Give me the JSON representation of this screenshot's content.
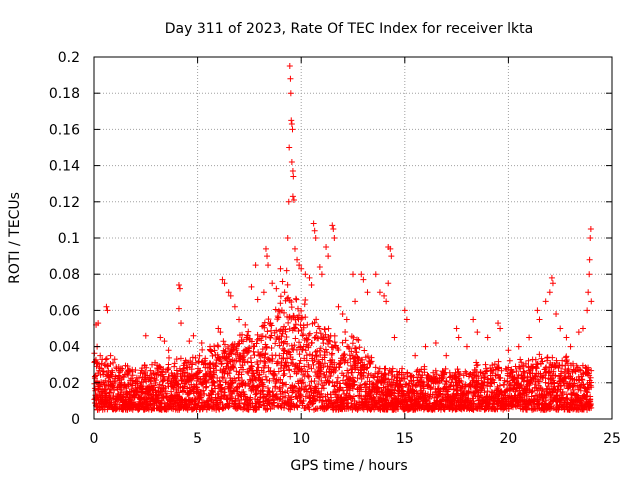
{
  "chart_data": {
    "type": "scatter",
    "title": "Day 311 of 2023, Rate Of TEC Index for receiver lkta",
    "xlabel": "GPS time / hours",
    "ylabel": "ROTI / TECUs",
    "xlim": [
      0,
      25
    ],
    "ylim": [
      0,
      0.2
    ],
    "x_ticks": [
      0,
      5,
      10,
      15,
      20,
      25
    ],
    "y_ticks": [
      0,
      0.02,
      0.04,
      0.06,
      0.08,
      0.1,
      0.12,
      0.14,
      0.16,
      0.18,
      0.2
    ],
    "x_tick_labels": [
      "0",
      "5",
      "10",
      "15",
      "20",
      "25"
    ],
    "y_tick_labels": [
      "0",
      "0.02",
      "0.04",
      "0.06",
      "0.08",
      "0.1",
      "0.12",
      "0.14",
      "0.16",
      "0.18",
      "0.2"
    ],
    "grid": true,
    "marker": "+",
    "color": "#ff0000",
    "series": [
      {
        "values_xy": [
          [
            0.1,
            0.052
          ],
          [
            0.15,
            0.04
          ],
          [
            0.2,
            0.053
          ],
          [
            0.3,
            0.035
          ],
          [
            0.5,
            0.03
          ],
          [
            0.6,
            0.062
          ],
          [
            0.65,
            0.06
          ],
          [
            0.8,
            0.035
          ],
          [
            1.0,
            0.033
          ],
          [
            1.3,
            0.028
          ],
          [
            1.6,
            0.025
          ],
          [
            2.0,
            0.027
          ],
          [
            2.5,
            0.046
          ],
          [
            2.8,
            0.03
          ],
          [
            3.2,
            0.045
          ],
          [
            3.4,
            0.043
          ],
          [
            3.6,
            0.038
          ],
          [
            4.1,
            0.074
          ],
          [
            4.15,
            0.072
          ],
          [
            4.1,
            0.061
          ],
          [
            4.2,
            0.053
          ],
          [
            4.6,
            0.043
          ],
          [
            4.8,
            0.046
          ],
          [
            5.2,
            0.042
          ],
          [
            5.6,
            0.04
          ],
          [
            6.0,
            0.05
          ],
          [
            6.1,
            0.048
          ],
          [
            6.2,
            0.077
          ],
          [
            6.3,
            0.075
          ],
          [
            6.5,
            0.07
          ],
          [
            6.6,
            0.068
          ],
          [
            6.8,
            0.062
          ],
          [
            7.0,
            0.055
          ],
          [
            7.3,
            0.052
          ],
          [
            7.6,
            0.073
          ],
          [
            7.8,
            0.085
          ],
          [
            7.9,
            0.066
          ],
          [
            8.2,
            0.07
          ],
          [
            8.3,
            0.094
          ],
          [
            8.35,
            0.09
          ],
          [
            8.4,
            0.085
          ],
          [
            8.6,
            0.075
          ],
          [
            8.8,
            0.072
          ],
          [
            9.0,
            0.083
          ],
          [
            9.1,
            0.076
          ],
          [
            9.2,
            0.07
          ],
          [
            9.3,
            0.082
          ],
          [
            9.35,
            0.1
          ],
          [
            9.4,
            0.12
          ],
          [
            9.42,
            0.15
          ],
          [
            9.45,
            0.195
          ],
          [
            9.48,
            0.188
          ],
          [
            9.5,
            0.18
          ],
          [
            9.52,
            0.165
          ],
          [
            9.55,
            0.163
          ],
          [
            9.58,
            0.16
          ],
          [
            9.6,
            0.137
          ],
          [
            9.62,
            0.134
          ],
          [
            9.55,
            0.142
          ],
          [
            9.6,
            0.123
          ],
          [
            9.65,
            0.121
          ],
          [
            9.7,
            0.094
          ],
          [
            9.8,
            0.088
          ],
          [
            9.9,
            0.085
          ],
          [
            10.0,
            0.083
          ],
          [
            10.2,
            0.08
          ],
          [
            10.4,
            0.078
          ],
          [
            10.5,
            0.074
          ],
          [
            10.6,
            0.108
          ],
          [
            10.65,
            0.104
          ],
          [
            10.7,
            0.1
          ],
          [
            10.9,
            0.084
          ],
          [
            11.0,
            0.08
          ],
          [
            11.2,
            0.095
          ],
          [
            11.3,
            0.09
          ],
          [
            11.5,
            0.107
          ],
          [
            11.55,
            0.105
          ],
          [
            11.6,
            0.1
          ],
          [
            11.8,
            0.062
          ],
          [
            12.0,
            0.058
          ],
          [
            12.2,
            0.055
          ],
          [
            12.5,
            0.08
          ],
          [
            12.6,
            0.065
          ],
          [
            12.9,
            0.08
          ],
          [
            13.0,
            0.077
          ],
          [
            13.2,
            0.07
          ],
          [
            13.6,
            0.08
          ],
          [
            13.8,
            0.07
          ],
          [
            14.0,
            0.068
          ],
          [
            14.2,
            0.095
          ],
          [
            14.3,
            0.094
          ],
          [
            14.35,
            0.09
          ],
          [
            14.2,
            0.075
          ],
          [
            14.1,
            0.065
          ],
          [
            14.5,
            0.045
          ],
          [
            15.0,
            0.06
          ],
          [
            15.1,
            0.055
          ],
          [
            15.5,
            0.035
          ],
          [
            16.0,
            0.04
          ],
          [
            16.5,
            0.042
          ],
          [
            17.0,
            0.035
          ],
          [
            17.5,
            0.05
          ],
          [
            17.6,
            0.045
          ],
          [
            18.0,
            0.04
          ],
          [
            18.3,
            0.055
          ],
          [
            18.5,
            0.048
          ],
          [
            19.0,
            0.045
          ],
          [
            19.5,
            0.053
          ],
          [
            19.6,
            0.05
          ],
          [
            20.0,
            0.038
          ],
          [
            20.5,
            0.04
          ],
          [
            21.0,
            0.045
          ],
          [
            21.4,
            0.06
          ],
          [
            21.5,
            0.055
          ],
          [
            21.8,
            0.065
          ],
          [
            22.0,
            0.07
          ],
          [
            22.1,
            0.078
          ],
          [
            22.15,
            0.075
          ],
          [
            22.3,
            0.058
          ],
          [
            22.5,
            0.05
          ],
          [
            22.8,
            0.045
          ],
          [
            23.0,
            0.04
          ],
          [
            23.4,
            0.048
          ],
          [
            23.6,
            0.05
          ],
          [
            23.8,
            0.06
          ],
          [
            23.85,
            0.07
          ],
          [
            23.9,
            0.08
          ],
          [
            23.92,
            0.088
          ],
          [
            23.95,
            0.1
          ],
          [
            23.98,
            0.105
          ],
          [
            24.0,
            0.065
          ]
        ],
        "dense_band": [
          [
            0.0,
            0.005,
            0.04
          ],
          [
            1.0,
            0.005,
            0.033
          ],
          [
            2.0,
            0.005,
            0.03
          ],
          [
            3.0,
            0.005,
            0.033
          ],
          [
            4.0,
            0.005,
            0.035
          ],
          [
            5.0,
            0.005,
            0.038
          ],
          [
            6.0,
            0.005,
            0.045
          ],
          [
            7.0,
            0.005,
            0.05
          ],
          [
            8.0,
            0.005,
            0.055
          ],
          [
            9.0,
            0.005,
            0.075
          ],
          [
            9.5,
            0.005,
            0.08
          ],
          [
            10.0,
            0.005,
            0.072
          ],
          [
            11.0,
            0.005,
            0.058
          ],
          [
            12.0,
            0.005,
            0.05
          ],
          [
            12.7,
            0.005,
            0.055
          ],
          [
            13.0,
            0.005,
            0.04
          ],
          [
            14.0,
            0.005,
            0.033
          ],
          [
            15.0,
            0.005,
            0.03
          ],
          [
            16.0,
            0.005,
            0.03
          ],
          [
            17.0,
            0.005,
            0.03
          ],
          [
            18.0,
            0.005,
            0.032
          ],
          [
            19.0,
            0.005,
            0.035
          ],
          [
            20.0,
            0.005,
            0.033
          ],
          [
            21.0,
            0.005,
            0.035
          ],
          [
            22.0,
            0.005,
            0.04
          ],
          [
            23.0,
            0.005,
            0.035
          ],
          [
            24.0,
            0.005,
            0.03
          ]
        ]
      }
    ]
  }
}
